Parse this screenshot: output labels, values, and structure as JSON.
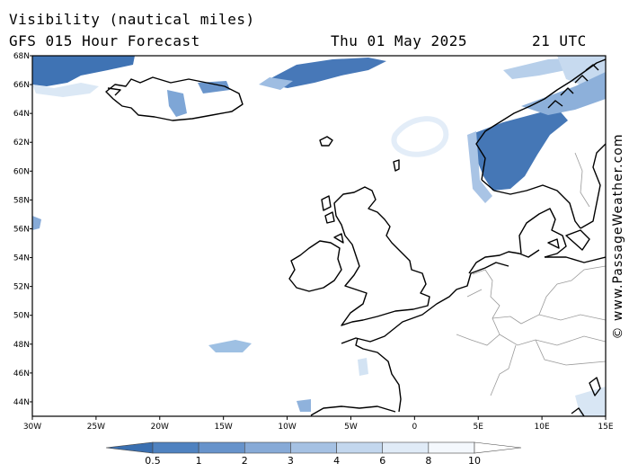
{
  "title": "Visibility (nautical miles)",
  "subtitle": "GFS 015 Hour Forecast",
  "valid_date": "Thu 01 May 2025",
  "valid_time": "21 UTC",
  "credit": "© www.PassageWeather.com",
  "colors": {
    "coast": "#000000",
    "borders": "#9a9a9a",
    "low_vis": "#3f73b4",
    "mid_vis": "#7ea9d6",
    "high_vis": "#d6e6f4"
  },
  "chart_data": {
    "type": "heatmap",
    "x_ticks": [
      "30W",
      "25W",
      "20W",
      "15W",
      "10W",
      "5W",
      "0",
      "5E",
      "10E",
      "15E"
    ],
    "y_ticks": [
      "68N",
      "66N",
      "64N",
      "62N",
      "60N",
      "58N",
      "56N",
      "54N",
      "52N",
      "50N",
      "48N",
      "46N",
      "44N"
    ],
    "xlim": [
      -30,
      15
    ],
    "ylim": [
      43,
      68
    ],
    "colorbar": {
      "labels": [
        "0.5",
        "1",
        "2",
        "3",
        "4",
        "6",
        "8",
        "10"
      ],
      "colors": [
        "#3a6fb0",
        "#4f82c0",
        "#6793cb",
        "#87aad7",
        "#a5c1e3",
        "#c3d7ee",
        "#e0ebf7",
        "#f4f8fd",
        "#ffffff"
      ]
    }
  }
}
